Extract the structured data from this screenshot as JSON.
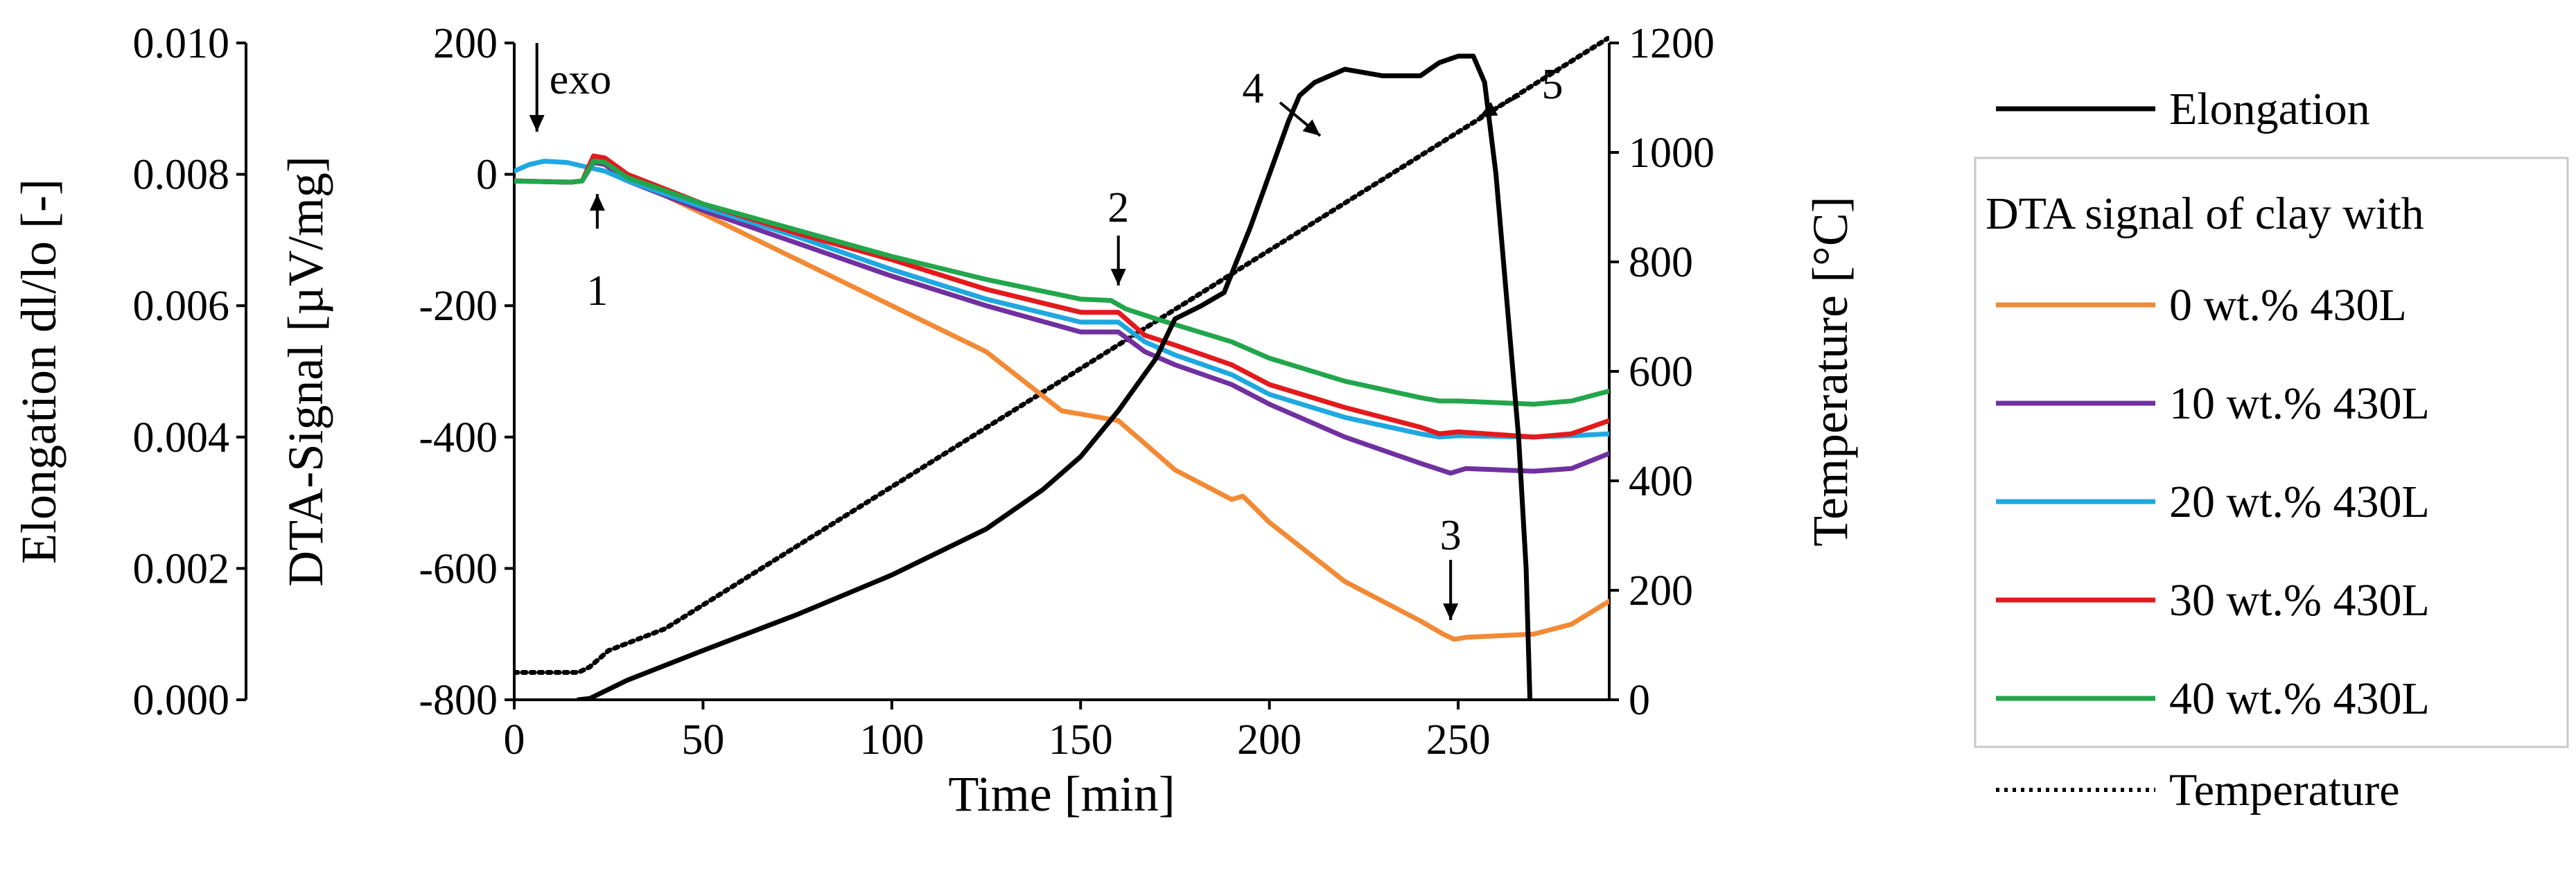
{
  "chart_data": {
    "type": "line",
    "xlabel": "Time [min]",
    "xlim": [
      0,
      290
    ],
    "xticks": [
      0,
      50,
      100,
      150,
      200,
      250
    ],
    "y_elongation": {
      "label": "Elongation dl/lo [-]",
      "ylim": [
        0,
        0.01
      ],
      "ticks": [
        "0.000",
        "0.002",
        "0.004",
        "0.006",
        "0.008",
        "0.010"
      ]
    },
    "y_dta": {
      "label": "DTA-Signal [µV/mg]",
      "ylim": [
        -800,
        200
      ],
      "ticks": [
        "-800",
        "-600",
        "-400",
        "-200",
        "0",
        "200"
      ]
    },
    "y_temperature": {
      "label": "Temperature [°C]",
      "ylim": [
        0,
        1200
      ],
      "ticks": [
        "0",
        "200",
        "400",
        "600",
        "800",
        "1000",
        "1200"
      ]
    },
    "legend": {
      "placement": "right",
      "group_title": "DTA signal of clay with"
    },
    "annotations": [
      {
        "label": "exo"
      },
      {
        "label": "1"
      },
      {
        "label": "2"
      },
      {
        "label": "3"
      },
      {
        "label": "4"
      },
      {
        "label": "5"
      }
    ],
    "series": [
      {
        "name": "Elongation",
        "axis": "elongation",
        "color": "#000000",
        "style": "solid",
        "points": [
          [
            17,
            0
          ],
          [
            20,
            2e-05
          ],
          [
            30,
            0.0003
          ],
          [
            50,
            0.00075
          ],
          [
            75,
            0.0013
          ],
          [
            100,
            0.0019
          ],
          [
            125,
            0.0026
          ],
          [
            140,
            0.0032
          ],
          [
            150,
            0.0037
          ],
          [
            160,
            0.0044
          ],
          [
            170,
            0.0052
          ],
          [
            175,
            0.0058
          ],
          [
            182,
            0.006
          ],
          [
            188,
            0.0062
          ],
          [
            195,
            0.0072
          ],
          [
            200,
            0.008
          ],
          [
            205,
            0.0088
          ],
          [
            208,
            0.0092
          ],
          [
            212,
            0.0094
          ],
          [
            220,
            0.0096
          ],
          [
            230,
            0.0095
          ],
          [
            240,
            0.0095
          ],
          [
            245,
            0.0097
          ],
          [
            250,
            0.0098
          ],
          [
            254,
            0.0098
          ],
          [
            257,
            0.0094
          ],
          [
            260,
            0.008
          ],
          [
            263,
            0.006
          ],
          [
            266,
            0.004
          ],
          [
            268,
            0.002
          ],
          [
            269,
            0
          ]
        ]
      },
      {
        "name": "0 wt.% 430L",
        "axis": "dta",
        "color": "#f28a35",
        "style": "solid",
        "points": [
          [
            0,
            -10
          ],
          [
            15,
            -12
          ],
          [
            18,
            -10
          ],
          [
            21,
            25
          ],
          [
            24,
            20
          ],
          [
            30,
            -5
          ],
          [
            50,
            -60
          ],
          [
            75,
            -130
          ],
          [
            100,
            -200
          ],
          [
            125,
            -270
          ],
          [
            145,
            -360
          ],
          [
            160,
            -375
          ],
          [
            167,
            -410
          ],
          [
            175,
            -450
          ],
          [
            190,
            -495
          ],
          [
            193,
            -490
          ],
          [
            200,
            -530
          ],
          [
            220,
            -620
          ],
          [
            240,
            -680
          ],
          [
            246,
            -700
          ],
          [
            249,
            -708
          ],
          [
            252,
            -705
          ],
          [
            270,
            -700
          ],
          [
            280,
            -685
          ],
          [
            290,
            -650
          ]
        ]
      },
      {
        "name": "10 wt.% 430L",
        "axis": "dta",
        "color": "#7030a0",
        "style": "solid",
        "points": [
          [
            0,
            -10
          ],
          [
            15,
            -12
          ],
          [
            18,
            -10
          ],
          [
            21,
            18
          ],
          [
            24,
            15
          ],
          [
            30,
            -10
          ],
          [
            50,
            -55
          ],
          [
            75,
            -105
          ],
          [
            100,
            -155
          ],
          [
            125,
            -200
          ],
          [
            150,
            -240
          ],
          [
            160,
            -240
          ],
          [
            167,
            -270
          ],
          [
            175,
            -290
          ],
          [
            190,
            -320
          ],
          [
            200,
            -350
          ],
          [
            220,
            -400
          ],
          [
            240,
            -440
          ],
          [
            248,
            -455
          ],
          [
            252,
            -448
          ],
          [
            270,
            -452
          ],
          [
            280,
            -448
          ],
          [
            290,
            -425
          ]
        ]
      },
      {
        "name": "20 wt.% 430L",
        "axis": "dta",
        "color": "#1fa8e0",
        "style": "solid",
        "points": [
          [
            0,
            5
          ],
          [
            4,
            15
          ],
          [
            8,
            20
          ],
          [
            14,
            18
          ],
          [
            20,
            10
          ],
          [
            24,
            5
          ],
          [
            30,
            -10
          ],
          [
            50,
            -50
          ],
          [
            75,
            -95
          ],
          [
            100,
            -145
          ],
          [
            125,
            -190
          ],
          [
            150,
            -225
          ],
          [
            160,
            -225
          ],
          [
            167,
            -255
          ],
          [
            175,
            -275
          ],
          [
            190,
            -305
          ],
          [
            200,
            -335
          ],
          [
            220,
            -370
          ],
          [
            240,
            -395
          ],
          [
            245,
            -400
          ],
          [
            250,
            -398
          ],
          [
            270,
            -400
          ],
          [
            280,
            -398
          ],
          [
            290,
            -395
          ]
        ]
      },
      {
        "name": "30 wt.% 430L",
        "axis": "dta",
        "color": "#e31a1c",
        "style": "solid",
        "points": [
          [
            0,
            -10
          ],
          [
            15,
            -12
          ],
          [
            18,
            -10
          ],
          [
            21,
            28
          ],
          [
            24,
            25
          ],
          [
            30,
            0
          ],
          [
            50,
            -45
          ],
          [
            75,
            -90
          ],
          [
            100,
            -130
          ],
          [
            125,
            -175
          ],
          [
            150,
            -210
          ],
          [
            160,
            -210
          ],
          [
            167,
            -245
          ],
          [
            175,
            -260
          ],
          [
            190,
            -290
          ],
          [
            200,
            -320
          ],
          [
            220,
            -355
          ],
          [
            240,
            -385
          ],
          [
            245,
            -395
          ],
          [
            250,
            -392
          ],
          [
            270,
            -400
          ],
          [
            280,
            -395
          ],
          [
            290,
            -375
          ]
        ]
      },
      {
        "name": "40 wt.% 430L",
        "axis": "dta",
        "color": "#22a64b",
        "style": "solid",
        "points": [
          [
            0,
            -10
          ],
          [
            15,
            -12
          ],
          [
            18,
            -10
          ],
          [
            21,
            20
          ],
          [
            24,
            18
          ],
          [
            30,
            -5
          ],
          [
            50,
            -45
          ],
          [
            75,
            -85
          ],
          [
            100,
            -125
          ],
          [
            125,
            -160
          ],
          [
            150,
            -190
          ],
          [
            158,
            -192
          ],
          [
            162,
            -205
          ],
          [
            170,
            -220
          ],
          [
            190,
            -255
          ],
          [
            200,
            -280
          ],
          [
            220,
            -315
          ],
          [
            240,
            -340
          ],
          [
            245,
            -345
          ],
          [
            250,
            -345
          ],
          [
            270,
            -350
          ],
          [
            280,
            -345
          ],
          [
            290,
            -330
          ]
        ]
      },
      {
        "name": "Temperature",
        "axis": "temperature",
        "color": "#000000",
        "style": "dotted",
        "points": [
          [
            0,
            50
          ],
          [
            17,
            50
          ],
          [
            20,
            60
          ],
          [
            25,
            90
          ],
          [
            40,
            130
          ],
          [
            290,
            1210
          ]
        ]
      }
    ]
  }
}
